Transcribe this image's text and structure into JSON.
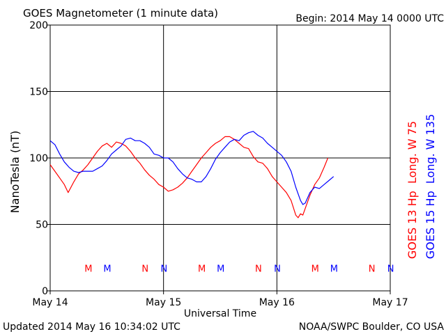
{
  "chart_data": {
    "type": "line",
    "title": "GOES Magnetometer (1 minute data)",
    "begin_label": "Begin:  2014 May 14 0000 UTC",
    "xlabel": "Universal Time",
    "ylabel": "NanoTesla (nT)",
    "xlim": [
      0,
      72
    ],
    "ylim": [
      0,
      200
    ],
    "x_units": "hours since 2014 May 14 0000 UTC",
    "x_ticks": [
      {
        "x": 0,
        "label": "May 14"
      },
      {
        "x": 24,
        "label": "May 15"
      },
      {
        "x": 48,
        "label": "May 16"
      },
      {
        "x": 72,
        "label": "May 17"
      }
    ],
    "y_ticks": [
      0,
      50,
      100,
      150,
      200
    ],
    "grid": true,
    "series": [
      {
        "name": "GOES 13 Hp  Long. W 75",
        "color": "#ff0000",
        "x": [
          0,
          1,
          2,
          3,
          3.8,
          5,
          6,
          7,
          8,
          9,
          10,
          11,
          12,
          13,
          14,
          15,
          16,
          17,
          18,
          19,
          20,
          21,
          22,
          23,
          24,
          25,
          26,
          27,
          28,
          29,
          30,
          31,
          32,
          33,
          34,
          35,
          36,
          37,
          38,
          39,
          40,
          41,
          42,
          43,
          44,
          45,
          46,
          47,
          48,
          49,
          50,
          51,
          52,
          52.5,
          53,
          53.5,
          54,
          55,
          56,
          57,
          58,
          58.8
        ],
        "y": [
          95,
          90,
          85,
          80,
          74,
          82,
          88,
          91,
          95,
          100,
          105,
          109,
          111,
          108,
          112,
          111,
          109,
          105,
          100,
          96,
          91,
          87,
          84,
          80,
          78,
          75,
          76,
          78,
          81,
          85,
          90,
          95,
          100,
          104,
          108,
          111,
          113,
          116,
          116,
          114,
          111,
          108,
          107,
          101,
          97,
          96,
          92,
          86,
          82,
          78,
          74,
          68,
          57,
          55,
          58,
          57,
          62,
          72,
          80,
          85,
          93,
          100
        ]
      },
      {
        "name": "GOES 15 Hp  Long. W 135",
        "color": "#0000ff",
        "x": [
          0,
          1,
          2,
          3,
          4,
          5,
          6,
          7,
          8,
          9,
          10,
          11,
          12,
          13,
          14,
          15,
          16,
          17,
          18,
          19,
          20,
          21,
          22,
          23,
          24,
          25,
          26,
          27,
          28,
          29,
          30,
          31,
          32,
          33,
          34,
          35,
          36,
          37,
          38,
          39,
          40,
          41,
          42,
          43,
          44,
          45,
          46,
          47,
          48,
          49,
          50,
          51,
          52,
          53,
          53.5,
          54,
          55,
          56,
          57,
          58,
          59,
          60
        ],
        "y": [
          113,
          110,
          103,
          97,
          93,
          90,
          89,
          90,
          90,
          90,
          92,
          94,
          98,
          103,
          106,
          109,
          114,
          115,
          113,
          113,
          111,
          108,
          103,
          102,
          100,
          100,
          97,
          92,
          88,
          85,
          84,
          82,
          82,
          86,
          92,
          99,
          104,
          108,
          112,
          114,
          113,
          117,
          119,
          120,
          117,
          115,
          111,
          108,
          105,
          102,
          97,
          90,
          78,
          68,
          65,
          66,
          74,
          78,
          77,
          80,
          83,
          86
        ]
      }
    ],
    "event_markers": {
      "rows": [
        {
          "letter": "M",
          "x": 8.1,
          "color": "#ff0000"
        },
        {
          "letter": "M",
          "x": 12.1,
          "color": "#0000ff"
        },
        {
          "letter": "N",
          "x": 20.1,
          "color": "#ff0000"
        },
        {
          "letter": "N",
          "x": 24.1,
          "color": "#0000ff"
        },
        {
          "letter": "M",
          "x": 32.1,
          "color": "#ff0000"
        },
        {
          "letter": "M",
          "x": 36.1,
          "color": "#0000ff"
        },
        {
          "letter": "N",
          "x": 44.1,
          "color": "#ff0000"
        },
        {
          "letter": "N",
          "x": 48.1,
          "color": "#0000ff"
        },
        {
          "letter": "M",
          "x": 56.1,
          "color": "#ff0000"
        },
        {
          "letter": "M",
          "x": 60.1,
          "color": "#0000ff"
        },
        {
          "letter": "N",
          "x": 68.1,
          "color": "#ff0000"
        },
        {
          "letter": "N",
          "x": 72.1,
          "color": "#0000ff"
        }
      ],
      "y_value": 17
    },
    "footer_left": "Updated 2014 May 16 10:34:02 UTC",
    "footer_right": "NOAA/SWPC Boulder, CO USA"
  }
}
